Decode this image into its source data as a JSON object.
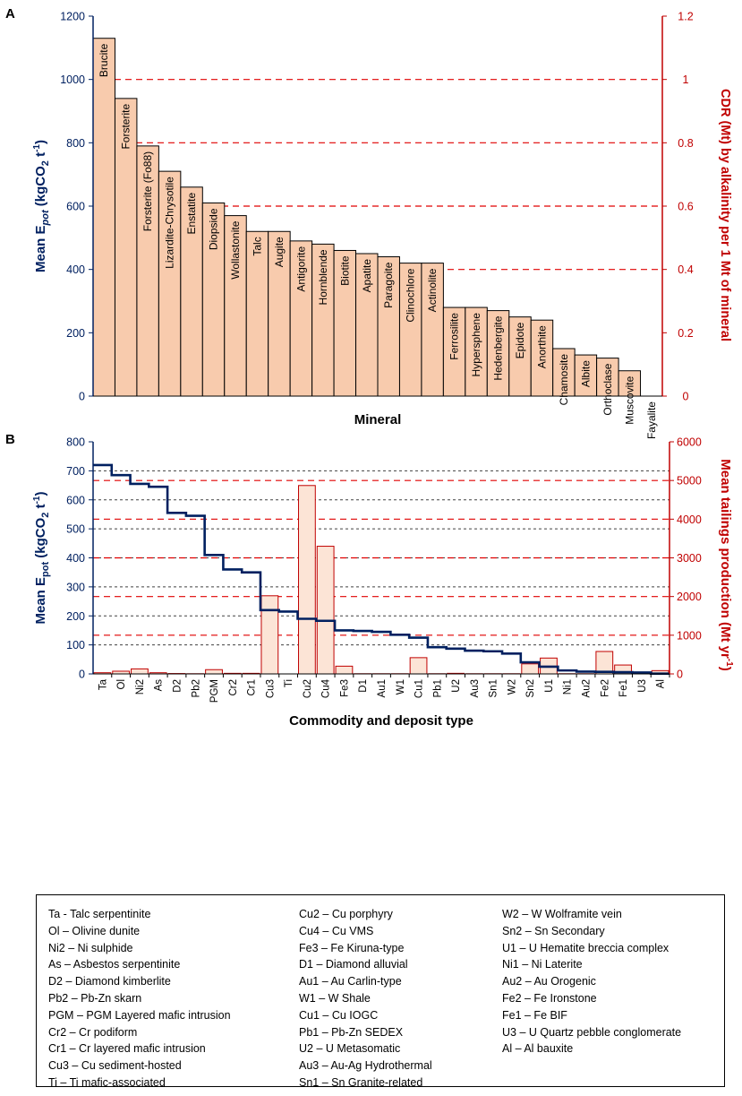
{
  "chart_data": [
    {
      "panel_label": "A",
      "type": "bar",
      "xlabel": "Mineral",
      "ylabel_main": "Mean E",
      "ylabel_sub": "pot",
      "ylabel_unit_pre": " (kgCO",
      "ylabel_unit_sub": "2",
      "ylabel_unit_mid": " t",
      "ylabel_unit_sup": "-1",
      "ylabel_unit_post": ")",
      "y2label": "CDR (Mt) by alkalinity per 1 Mt of mineral",
      "ylim": [
        0,
        1200
      ],
      "y_ticks": [
        "0",
        "200",
        "400",
        "600",
        "800",
        "1000",
        "1200"
      ],
      "y2lim": [
        0,
        1.2
      ],
      "y2_ticks": [
        "0",
        "0.2",
        "0.4",
        "0.6",
        "0.8",
        "1",
        "1.2"
      ],
      "y2_gridlines": [
        0.4,
        0.6,
        0.8,
        1.0
      ],
      "bar_color": "#F8CBAD",
      "categories": [
        "Brucite",
        "Forsterite",
        "Forsterite (Fo88)",
        "Lizardite-Chrysotile",
        "Enstatite",
        "Diopside",
        "Wollastonite",
        "Talc",
        "Augite",
        "Antigorite",
        "Hornblende",
        "Biotite",
        "Apatite",
        "Paragoite",
        "Clinochlore",
        "Actinolite",
        "Ferrosilite",
        "Hypersphene",
        "Hedenbergite",
        "Epidote",
        "Anorthite",
        "Chamosite",
        "Albite",
        "Orthoclase",
        "Muscovite",
        "Fayalite"
      ],
      "values": [
        1130,
        940,
        790,
        710,
        660,
        610,
        570,
        520,
        520,
        490,
        480,
        460,
        450,
        440,
        420,
        420,
        280,
        280,
        270,
        250,
        240,
        150,
        130,
        120,
        80,
        0
      ]
    },
    {
      "panel_label": "B",
      "type": "bar+line",
      "xlabel": "Commodity and deposit type",
      "ylabel_main": "Mean E",
      "ylabel_sub": "pot",
      "ylabel_unit_pre": " (kgCO",
      "ylabel_unit_sub": "2",
      "ylabel_unit_mid": " t",
      "ylabel_unit_sup": "-1",
      "ylabel_unit_post": ")",
      "y2label_pre": "Mean tailings production (Mt yr",
      "y2label_sup": "-1",
      "y2label_post": ")",
      "ylim": [
        0,
        800
      ],
      "y_ticks": [
        "0",
        "100",
        "200",
        "300",
        "400",
        "500",
        "600",
        "700",
        "800"
      ],
      "y2lim": [
        0,
        6000
      ],
      "y2_ticks": [
        "0",
        "1000",
        "2000",
        "3000",
        "4000",
        "5000",
        "6000"
      ],
      "y_gridlines": [
        100,
        200,
        300,
        400,
        500,
        600,
        700
      ],
      "y2_gridlines": [
        1000,
        2000,
        3000,
        4000,
        5000
      ],
      "bar_color": "#FCE4D6",
      "line_color": "#002060",
      "categories": [
        "Ta",
        "Ol",
        "Ni2",
        "As",
        "D2",
        "Pb2",
        "PGM",
        "Cr2",
        "Cr1",
        "Cu3",
        "Ti",
        "Cu2",
        "Cu4",
        "Fe3",
        "D1",
        "Au1",
        "W1",
        "Cu1",
        "Pb1",
        "U2",
        "Au3",
        "Sn1",
        "W2",
        "Sn2",
        "U1",
        "Ni1",
        "Au2",
        "Fe2",
        "Fe1",
        "U3",
        "Al"
      ],
      "series": [
        {
          "name": "Mean Epot",
          "axis": "left",
          "kind": "step",
          "values": [
            720,
            685,
            655,
            645,
            555,
            545,
            410,
            360,
            350,
            220,
            215,
            190,
            183,
            150,
            148,
            145,
            135,
            125,
            92,
            87,
            80,
            78,
            70,
            40,
            25,
            12,
            8,
            7,
            6,
            5,
            1
          ]
        },
        {
          "name": "Mean tailings production",
          "axis": "right",
          "kind": "bar",
          "values": [
            30,
            70,
            130,
            30,
            10,
            5,
            110,
            15,
            15,
            2020,
            0,
            4870,
            3300,
            200,
            5,
            5,
            5,
            420,
            5,
            15,
            5,
            5,
            5,
            260,
            410,
            5,
            5,
            580,
            230,
            5,
            85
          ]
        }
      ]
    }
  ],
  "legend": {
    "columns": [
      [
        "Ta - Talc serpentinite",
        "Ol – Olivine dunite",
        "Ni2 – Ni sulphide",
        "As – Asbestos serpentinite",
        "D2 – Diamond kimberlite",
        "Pb2 – Pb-Zn skarn",
        "PGM – PGM Layered mafic intrusion",
        "Cr2 – Cr podiform",
        "Cr1 – Cr layered mafic intrusion",
        "Cu3 – Cu sediment-hosted",
        "Ti – Ti mafic-associated"
      ],
      [
        "Cu2 – Cu porphyry",
        "Cu4 – Cu VMS",
        "Fe3 – Fe Kiruna-type",
        "D1 – Diamond alluvial",
        "Au1 – Au Carlin-type",
        "W1 – W Shale",
        "Cu1 – Cu IOGC",
        "Pb1 – Pb-Zn SEDEX",
        "U2 – U Metasomatic",
        "Au3 – Au-Ag Hydrothermal",
        "Sn1 – Sn Granite-related"
      ],
      [
        "W2 – W Wolframite vein",
        "Sn2 – Sn Secondary",
        "U1 – U Hematite breccia complex",
        "Ni1 – Ni Laterite",
        "Au2 – Au Orogenic",
        "Fe2 – Fe Ironstone",
        "Fe1 – Fe BIF",
        "U3 – U Quartz pebble conglomerate",
        "Al – Al bauxite"
      ]
    ]
  },
  "colors": {
    "left_axis": "#002060",
    "right_axis": "#C00000",
    "right_grid": "#E00000",
    "left_grid": "#404040"
  }
}
